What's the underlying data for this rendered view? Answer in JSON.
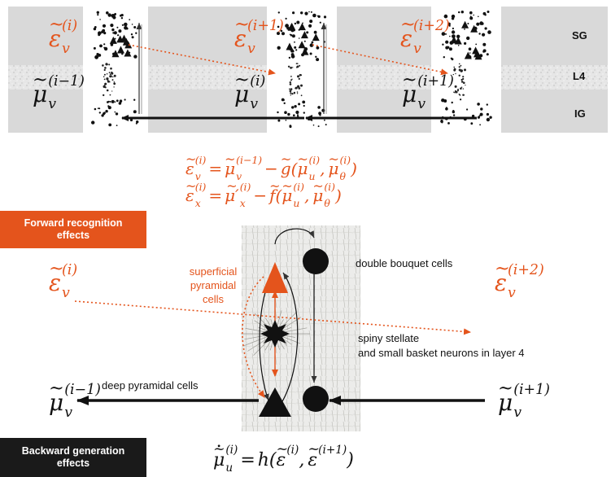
{
  "layer_labels": {
    "sg": "SG",
    "l4": "L4",
    "ig": "IG"
  },
  "top_strip": {
    "epsilons": [
      {
        "base": "ε",
        "sub": "v",
        "sup": "(i)"
      },
      {
        "base": "ε",
        "sub": "v",
        "sup": "(i+1)"
      },
      {
        "base": "ε",
        "sub": "v",
        "sup": "(i+2)"
      }
    ],
    "mus": [
      {
        "base": "μ",
        "sub": "v",
        "sup": "(i−1)"
      },
      {
        "base": "μ",
        "sub": "v",
        "sup": "(i)"
      },
      {
        "base": "μ",
        "sub": "v",
        "sup": "(i+1)"
      }
    ]
  },
  "equations": {
    "eq1": {
      "lhs": {
        "base": "ε",
        "sub": "v",
        "sup": "(i)"
      },
      "eq": "=",
      "t1": {
        "base": "μ",
        "sub": "v",
        "sup": "(i−1)"
      },
      "minus": "−",
      "fn": "g",
      "open": "(",
      "a1": {
        "base": "μ",
        "sub": "u",
        "sup": "(i)"
      },
      "comma": ",",
      "a2": {
        "base": "μ",
        "sub": "θ",
        "sup": "(i)"
      },
      "close": ")"
    },
    "eq2": {
      "lhs": {
        "base": "ε",
        "sub": "x",
        "sup": "(i)"
      },
      "eq": "=",
      "t1": {
        "base": "μ′",
        "sub": "x",
        "sup": "(i)"
      },
      "minus": "−",
      "fn": "f",
      "open": "(",
      "a1": {
        "base": "μ",
        "sub": "u",
        "sup": "(i)"
      },
      "comma": ",",
      "a2": {
        "base": "μ",
        "sub": "θ",
        "sup": "(i)"
      },
      "close": ")"
    },
    "eq3": {
      "lhs": {
        "base": "μ",
        "sub": "u",
        "sup": "(i)"
      },
      "eq": "=",
      "fn": "h",
      "open": "(",
      "a1": {
        "base": "ε",
        "sup": "(i)"
      },
      "comma": ",",
      "a2": {
        "base": "ε",
        "sup": "(i+1)"
      },
      "close": ")"
    }
  },
  "boxes": {
    "forward": "Forward recognition effects",
    "backward": "Backward generation effects"
  },
  "cell_labels": {
    "superficial": "superficial pyramidal cells",
    "double_bouquet": "double bouquet cells",
    "spiny_line1": "spiny stellate",
    "spiny_line2": "and small basket neurons in layer 4",
    "deep": "deep pyramidal cells"
  },
  "side_symbols": {
    "left_eps": {
      "base": "ε",
      "sub": "v",
      "sup": "(i)"
    },
    "right_eps": {
      "base": "ε",
      "sub": "v",
      "sup": "(i+2)"
    },
    "left_mu": {
      "base": "μ",
      "sub": "v",
      "sup": "(i−1)"
    },
    "right_mu": {
      "base": "μ",
      "sub": "v",
      "sup": "(i+1)"
    }
  },
  "colors": {
    "orange": "#e4541c",
    "black": "#111111",
    "band_gray": "#d9d9d9",
    "forward_box": "#e4541c",
    "backward_box": "#1a1a1a"
  }
}
